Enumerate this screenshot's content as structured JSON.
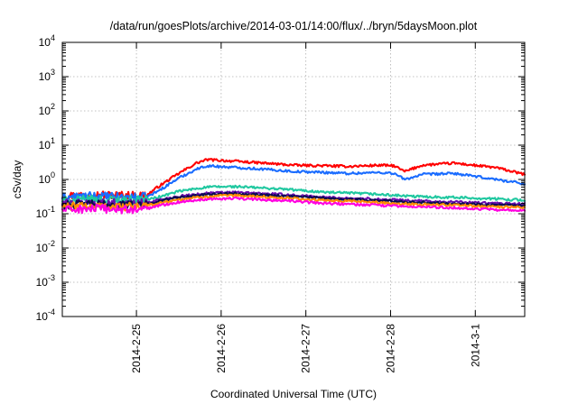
{
  "chart_data": {
    "type": "line",
    "title": "/data/run/goesPlots/archive/2014-03-01/14:00/flux/../bryn/5daysMoon.plot",
    "xlabel": "Coordinated Universal Time (UTC)",
    "ylabel": "cSv/day",
    "yscale": "log",
    "ylim": [
      0.0001,
      10000
    ],
    "y_ticks": [
      {
        "value": 0.0001,
        "base": "10",
        "exp": "-4"
      },
      {
        "value": 0.001,
        "base": "10",
        "exp": "-3"
      },
      {
        "value": 0.01,
        "base": "10",
        "exp": "-2"
      },
      {
        "value": 0.1,
        "base": "10",
        "exp": "-1"
      },
      {
        "value": 1,
        "base": "10",
        "exp": "0"
      },
      {
        "value": 10,
        "base": "10",
        "exp": "1"
      },
      {
        "value": 100,
        "base": "10",
        "exp": "2"
      },
      {
        "value": 1000,
        "base": "10",
        "exp": "3"
      },
      {
        "value": 10000,
        "base": "10",
        "exp": "4"
      }
    ],
    "xlim": [
      "2014-02-24 03:00",
      "2014-03-01 14:00"
    ],
    "x_ticks": [
      "2014-2-25",
      "2014-2-26",
      "2014-2-27",
      "2014-2-28",
      "2014-3-1"
    ],
    "grid": true,
    "series": [
      {
        "color": "#ff0000",
        "x": [
          "2014-02-24 03:00",
          "2014-02-24 12:00",
          "2014-02-24 23:00",
          "2014-02-25 03:00",
          "2014-02-25 06:00",
          "2014-02-25 12:00",
          "2014-02-25 17:00",
          "2014-02-25 20:00",
          "2014-02-26 02:00",
          "2014-02-26 12:00",
          "2014-02-26 21:00",
          "2014-02-27 06:00",
          "2014-02-27 12:00",
          "2014-02-27 21:00",
          "2014-02-28 01:00",
          "2014-02-28 04:00",
          "2014-02-28 09:00",
          "2014-02-28 18:00",
          "2014-03-01 06:00",
          "2014-03-01 14:00"
        ],
        "y": [
          0.33,
          0.36,
          0.34,
          0.35,
          0.6,
          1.5,
          3.0,
          3.8,
          3.5,
          3.0,
          2.6,
          2.5,
          2.4,
          2.6,
          2.5,
          1.7,
          2.6,
          3.0,
          2.2,
          1.4
        ]
      },
      {
        "color": "#1a6cff",
        "x": [
          "2014-02-24 03:00",
          "2014-02-24 12:00",
          "2014-02-24 23:00",
          "2014-02-25 03:00",
          "2014-02-25 06:00",
          "2014-02-25 12:00",
          "2014-02-25 17:00",
          "2014-02-25 20:00",
          "2014-02-26 02:00",
          "2014-02-26 12:00",
          "2014-02-26 21:00",
          "2014-02-27 06:00",
          "2014-02-27 12:00",
          "2014-02-27 21:00",
          "2014-02-28 01:00",
          "2014-02-28 04:00",
          "2014-02-28 09:00",
          "2014-02-28 18:00",
          "2014-03-01 06:00",
          "2014-03-01 14:00"
        ],
        "y": [
          0.3,
          0.33,
          0.3,
          0.31,
          0.45,
          1.1,
          2.0,
          2.5,
          2.3,
          2.0,
          1.7,
          1.6,
          1.5,
          1.6,
          1.5,
          1.0,
          1.4,
          1.5,
          1.0,
          0.75
        ]
      },
      {
        "color": "#20c8a0",
        "x": [
          "2014-02-24 03:00",
          "2014-02-24 12:00",
          "2014-02-24 23:00",
          "2014-02-25 03:00",
          "2014-02-25 06:00",
          "2014-02-25 12:00",
          "2014-02-25 20:00",
          "2014-02-26 04:00",
          "2014-02-26 18:00",
          "2014-02-27 06:00",
          "2014-02-27 18:00",
          "2014-02-28 06:00",
          "2014-02-28 18:00",
          "2014-03-01 06:00",
          "2014-03-01 14:00"
        ],
        "y": [
          0.24,
          0.26,
          0.25,
          0.26,
          0.3,
          0.45,
          0.6,
          0.62,
          0.52,
          0.42,
          0.38,
          0.32,
          0.3,
          0.27,
          0.25
        ]
      },
      {
        "color": "#6a0dad",
        "x": [
          "2014-02-24 03:00",
          "2014-02-24 12:00",
          "2014-02-24 23:00",
          "2014-02-25 03:00",
          "2014-02-25 06:00",
          "2014-02-25 12:00",
          "2014-02-25 20:00",
          "2014-02-26 04:00",
          "2014-02-26 18:00",
          "2014-02-27 06:00",
          "2014-02-27 18:00",
          "2014-02-28 06:00",
          "2014-02-28 18:00",
          "2014-03-01 06:00",
          "2014-03-01 14:00"
        ],
        "y": [
          0.2,
          0.21,
          0.2,
          0.21,
          0.25,
          0.32,
          0.4,
          0.42,
          0.36,
          0.3,
          0.27,
          0.24,
          0.22,
          0.2,
          0.19
        ]
      },
      {
        "color": "#0a0a50",
        "x": [
          "2014-02-24 03:00",
          "2014-02-24 12:00",
          "2014-02-24 23:00",
          "2014-02-25 03:00",
          "2014-02-25 06:00",
          "2014-02-25 12:00",
          "2014-02-25 20:00",
          "2014-02-26 04:00",
          "2014-02-26 18:00",
          "2014-02-27 06:00",
          "2014-02-27 18:00",
          "2014-02-28 06:00",
          "2014-02-28 18:00",
          "2014-03-01 06:00",
          "2014-03-01 14:00"
        ],
        "y": [
          0.18,
          0.19,
          0.18,
          0.19,
          0.23,
          0.3,
          0.37,
          0.39,
          0.33,
          0.28,
          0.25,
          0.22,
          0.2,
          0.18,
          0.17
        ]
      },
      {
        "color": "#ff8c00",
        "x": [
          "2014-02-24 03:00",
          "2014-02-24 12:00",
          "2014-02-24 23:00",
          "2014-02-25 03:00",
          "2014-02-25 06:00",
          "2014-02-25 12:00",
          "2014-02-25 20:00",
          "2014-02-26 04:00",
          "2014-02-26 18:00",
          "2014-02-27 06:00",
          "2014-02-27 18:00",
          "2014-02-28 06:00",
          "2014-02-28 18:00",
          "2014-03-01 06:00",
          "2014-03-01 14:00"
        ],
        "y": [
          0.16,
          0.17,
          0.16,
          0.17,
          0.2,
          0.26,
          0.32,
          0.34,
          0.29,
          0.24,
          0.22,
          0.19,
          0.18,
          0.16,
          0.15
        ]
      },
      {
        "color": "#ff00e0",
        "x": [
          "2014-02-24 03:00",
          "2014-02-24 12:00",
          "2014-02-24 23:00",
          "2014-02-25 03:00",
          "2014-02-25 06:00",
          "2014-02-25 12:00",
          "2014-02-25 20:00",
          "2014-02-26 04:00",
          "2014-02-26 18:00",
          "2014-02-27 06:00",
          "2014-02-27 18:00",
          "2014-02-28 06:00",
          "2014-02-28 18:00",
          "2014-03-01 06:00",
          "2014-03-01 14:00"
        ],
        "y": [
          0.13,
          0.14,
          0.13,
          0.14,
          0.17,
          0.22,
          0.27,
          0.28,
          0.24,
          0.2,
          0.18,
          0.16,
          0.15,
          0.13,
          0.12
        ]
      }
    ]
  }
}
